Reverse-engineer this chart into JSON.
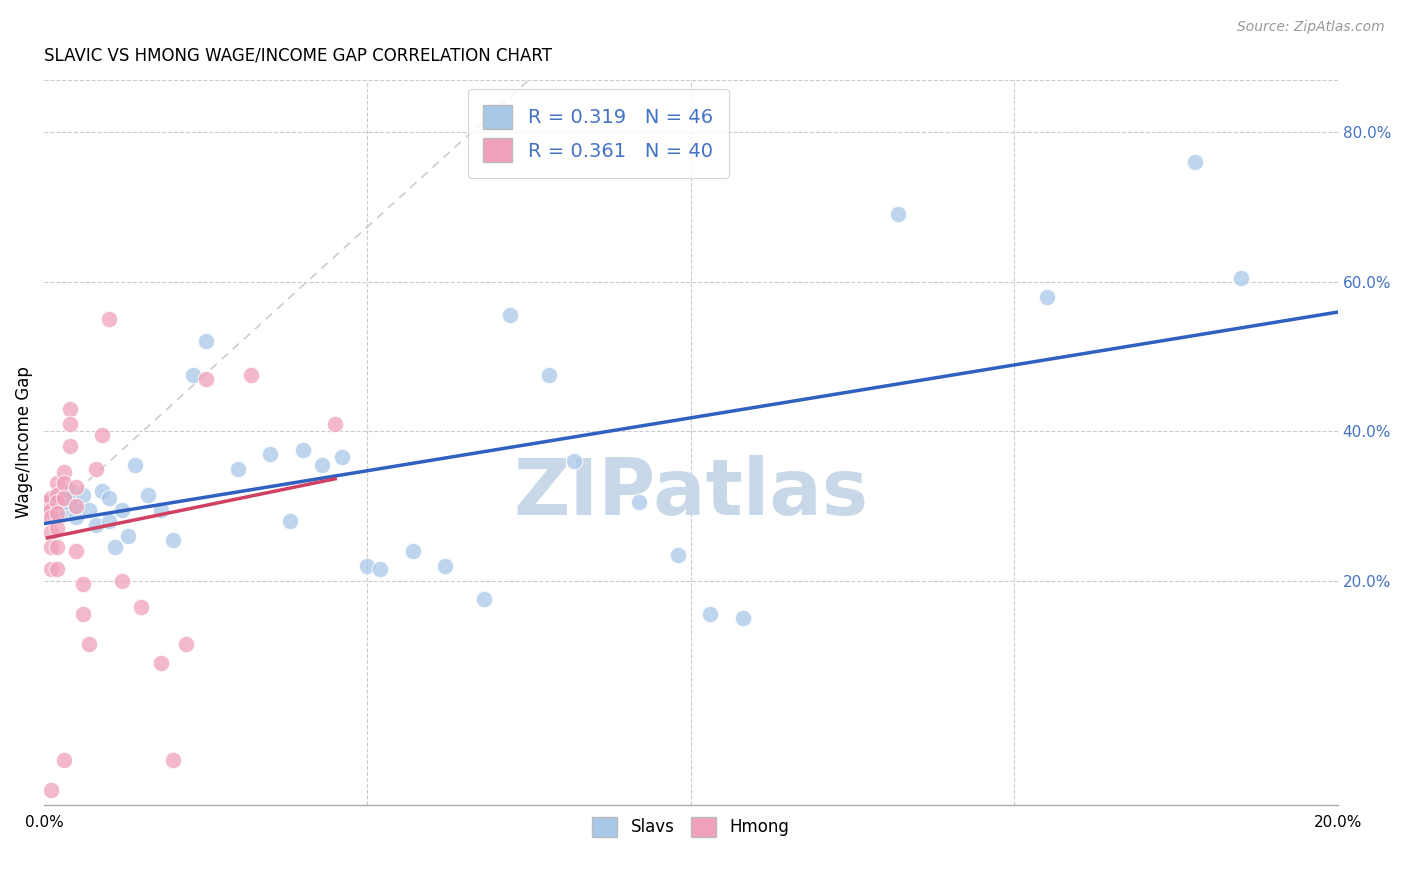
{
  "title": "SLAVIC VS HMONG WAGE/INCOME GAP CORRELATION CHART",
  "source": "Source: ZipAtlas.com",
  "ylabel": "Wage/Income Gap",
  "xlim": [
    0.0,
    0.2
  ],
  "ylim": [
    -0.1,
    0.87
  ],
  "yticks": [
    0.2,
    0.4,
    0.6,
    0.8
  ],
  "ytick_labels": [
    "20.0%",
    "40.0%",
    "60.0%",
    "80.0%"
  ],
  "slavs_R": 0.319,
  "slavs_N": 46,
  "hmong_R": 0.361,
  "hmong_N": 40,
  "slavs_color": "#A8C8E8",
  "hmong_color": "#F0A0B8",
  "slavs_line_color": "#3060C0",
  "hmong_line_color": "#D04060",
  "identity_line_color": "#CCCCCC",
  "background_color": "#FFFFFF",
  "grid_color": "#CCCCCC",
  "label_color": "#4472C4",
  "slavs_x": [
    0.001,
    0.002,
    0.002,
    0.003,
    0.003,
    0.004,
    0.004,
    0.005,
    0.005,
    0.006,
    0.007,
    0.008,
    0.009,
    0.01,
    0.01,
    0.011,
    0.012,
    0.013,
    0.014,
    0.016,
    0.018,
    0.02,
    0.023,
    0.025,
    0.03,
    0.035,
    0.038,
    0.04,
    0.043,
    0.046,
    0.05,
    0.052,
    0.057,
    0.062,
    0.068,
    0.072,
    0.078,
    0.082,
    0.092,
    0.098,
    0.103,
    0.108,
    0.132,
    0.155,
    0.178,
    0.185
  ],
  "slavs_y": [
    0.305,
    0.31,
    0.315,
    0.295,
    0.305,
    0.31,
    0.32,
    0.285,
    0.3,
    0.315,
    0.295,
    0.275,
    0.32,
    0.28,
    0.31,
    0.245,
    0.295,
    0.26,
    0.355,
    0.315,
    0.295,
    0.255,
    0.475,
    0.52,
    0.35,
    0.37,
    0.28,
    0.375,
    0.355,
    0.365,
    0.22,
    0.215,
    0.24,
    0.22,
    0.175,
    0.555,
    0.475,
    0.36,
    0.305,
    0.235,
    0.155,
    0.15,
    0.69,
    0.58,
    0.76,
    0.605
  ],
  "hmong_x": [
    0.0005,
    0.0005,
    0.001,
    0.001,
    0.001,
    0.001,
    0.001,
    0.001,
    0.001,
    0.002,
    0.002,
    0.002,
    0.002,
    0.002,
    0.002,
    0.002,
    0.003,
    0.003,
    0.003,
    0.003,
    0.004,
    0.004,
    0.004,
    0.005,
    0.005,
    0.005,
    0.006,
    0.006,
    0.007,
    0.008,
    0.009,
    0.01,
    0.012,
    0.015,
    0.018,
    0.02,
    0.022,
    0.025,
    0.032,
    0.045
  ],
  "hmong_y": [
    0.305,
    0.295,
    0.31,
    0.295,
    0.285,
    0.265,
    0.245,
    0.215,
    -0.08,
    0.33,
    0.315,
    0.305,
    0.29,
    0.27,
    0.245,
    0.215,
    0.345,
    0.33,
    0.31,
    -0.04,
    0.43,
    0.41,
    0.38,
    0.325,
    0.3,
    0.24,
    0.195,
    0.155,
    0.115,
    0.35,
    0.395,
    0.55,
    0.2,
    0.165,
    0.09,
    -0.04,
    0.115,
    0.47,
    0.475,
    0.41
  ],
  "watermark": "ZIPatlas",
  "watermark_color": "#C8D8E8"
}
